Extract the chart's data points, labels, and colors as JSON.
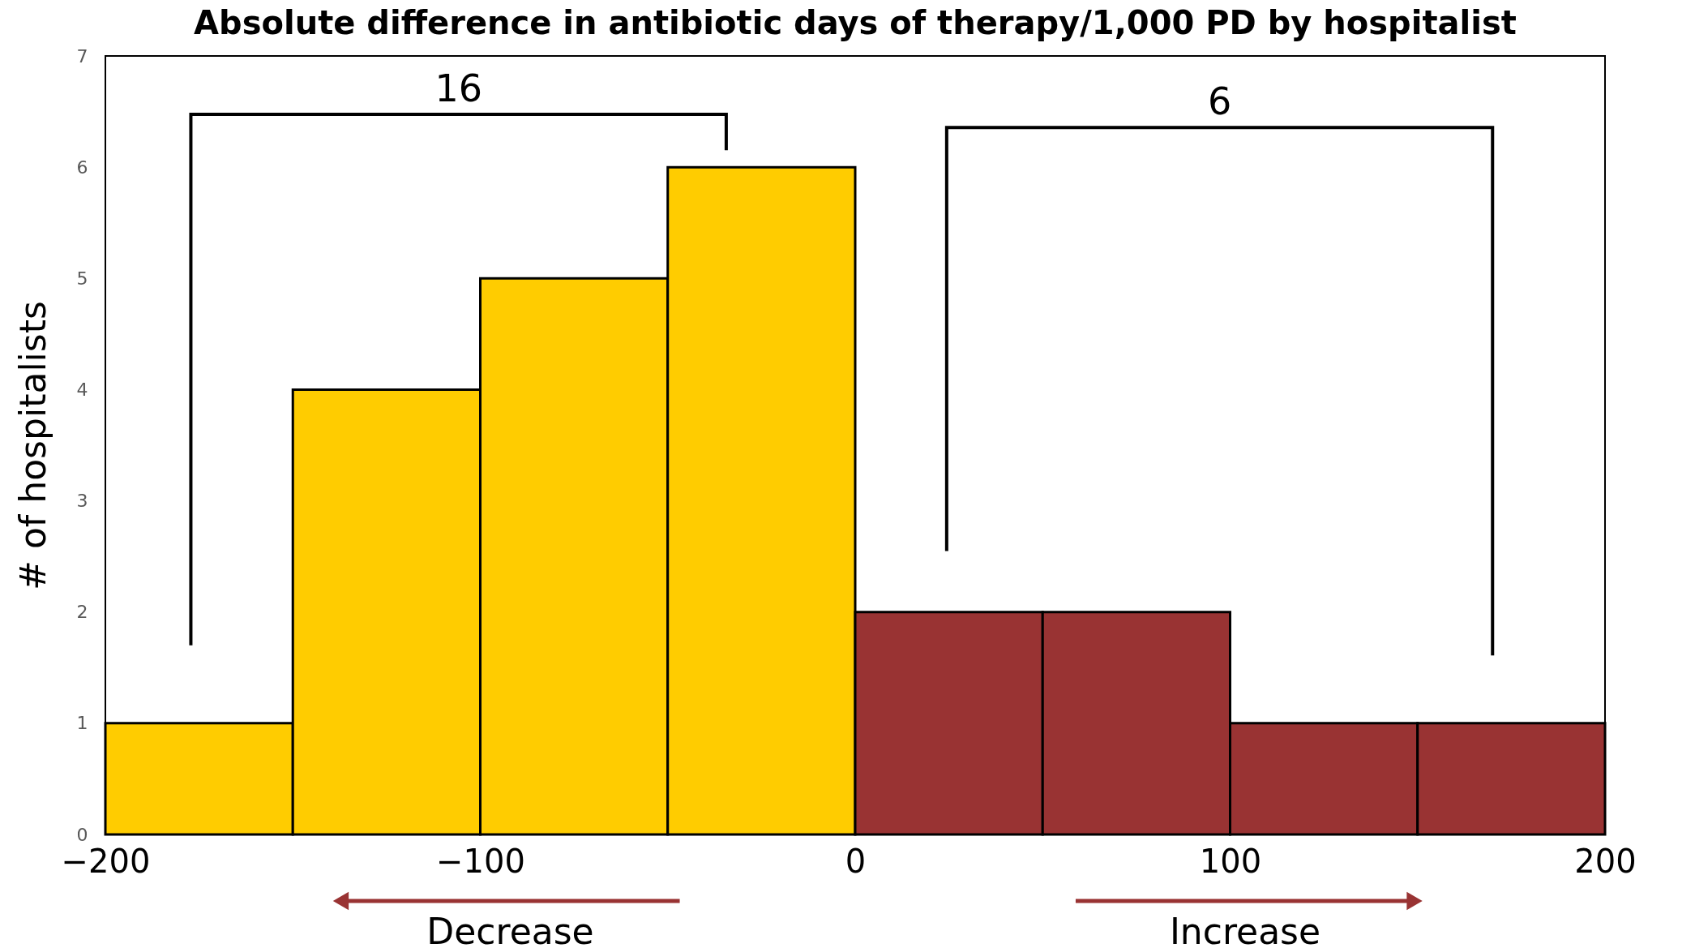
{
  "chart_data": {
    "type": "histogram",
    "title": "Absolute difference in antibiotic days of therapy/1,000 PD by hospitalist",
    "ylabel": "# of hospitalists",
    "bins": [
      -200,
      -150,
      -100,
      -50,
      0,
      50,
      100,
      150,
      200
    ],
    "values": [
      1,
      4,
      5,
      6,
      2,
      2,
      1,
      1
    ],
    "colors": [
      "#ffcc00",
      "#ffcc00",
      "#ffcc00",
      "#ffcc00",
      "#993333",
      "#993333",
      "#993333",
      "#993333"
    ],
    "xlim": [
      -200,
      200
    ],
    "xticks": [
      -200,
      -100,
      0,
      100,
      200
    ],
    "ylim": [
      0,
      7
    ],
    "yticks": [
      0,
      1,
      2,
      3,
      4,
      5,
      6,
      7
    ],
    "grid": false,
    "annotations": [
      "16",
      "6",
      "Decrease",
      "Increase"
    ]
  }
}
